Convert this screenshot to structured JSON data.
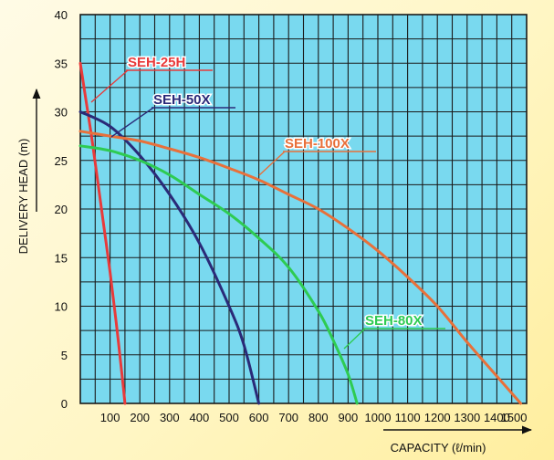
{
  "chart_data": {
    "type": "line",
    "title": "",
    "xlabel": "CAPACITY (ℓ/min)",
    "ylabel": "DELIVERY HEAD (m)",
    "xlim": [
      0,
      1500
    ],
    "ylim": [
      0,
      40
    ],
    "x_ticks": [
      100,
      200,
      300,
      400,
      500,
      600,
      700,
      800,
      900,
      1000,
      1100,
      1200,
      1300,
      1400,
      1500
    ],
    "x_tick_labels": [
      "100",
      "200",
      "300",
      "400",
      "500",
      "600",
      "700",
      "800",
      "900",
      "1000",
      "1100",
      "1200",
      "1300",
      "1400",
      "1500"
    ],
    "y_ticks": [
      0,
      5,
      10,
      15,
      20,
      25,
      30,
      35,
      40
    ],
    "y_tick_labels": [
      "0",
      "5",
      "10",
      "15",
      "20",
      "25",
      "30",
      "35",
      "40"
    ],
    "grid": true,
    "plot_background": "#79d9ef",
    "grid_color": "#1a1a1a",
    "series": [
      {
        "name": "SEH-25H",
        "color": "#e83a3a",
        "x": [
          0,
          20,
          40,
          60,
          80,
          100,
          120,
          140,
          150
        ],
        "y": [
          35,
          31,
          27,
          22.5,
          18,
          13.5,
          8.5,
          3,
          0
        ]
      },
      {
        "name": "SEH-50X",
        "color": "#2a2a78",
        "x": [
          0,
          100,
          200,
          300,
          400,
          500,
          550,
          600
        ],
        "y": [
          30,
          28.5,
          25.5,
          21.5,
          16.5,
          10,
          6,
          0
        ]
      },
      {
        "name": "SEH-80X",
        "color": "#2ecb52",
        "x": [
          0,
          100,
          200,
          300,
          400,
          500,
          600,
          700,
          800,
          850,
          900,
          930
        ],
        "y": [
          26.5,
          26,
          25,
          23.5,
          21.5,
          19.5,
          17,
          14,
          9.5,
          6.5,
          3,
          0
        ]
      },
      {
        "name": "SEH-100X",
        "color": "#e8703a",
        "x": [
          0,
          100,
          200,
          300,
          400,
          500,
          600,
          700,
          800,
          900,
          1000,
          1100,
          1200,
          1300,
          1400,
          1480
        ],
        "y": [
          28,
          27.5,
          27,
          26.2,
          25.3,
          24.2,
          23,
          21.5,
          20,
          18,
          15.7,
          13,
          10,
          6.3,
          2.8,
          0
        ]
      }
    ]
  }
}
